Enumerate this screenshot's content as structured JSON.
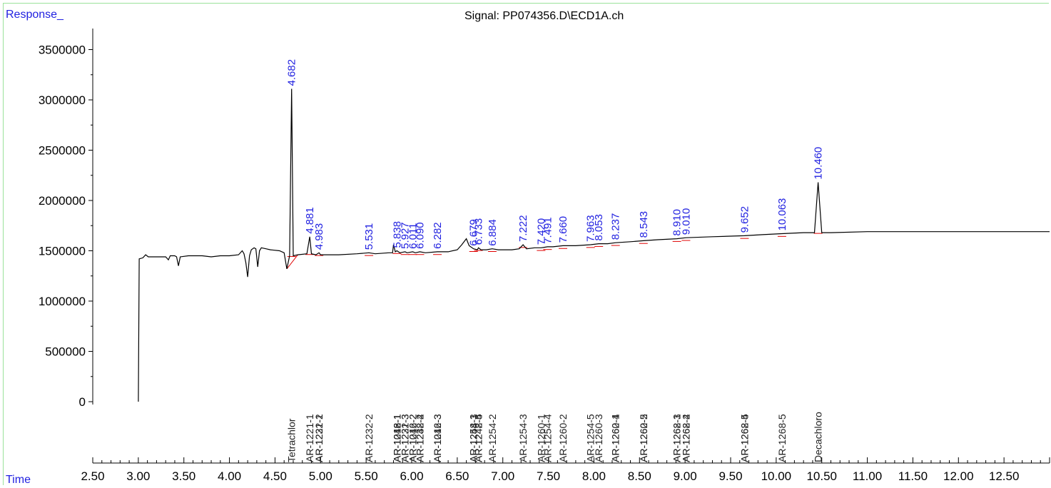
{
  "header": {
    "y_axis_label": "Response_",
    "x_axis_label": "Time",
    "signal_title": "Signal: PP074356.D\\ECD1A.ch"
  },
  "chart_data": {
    "type": "line",
    "title": "Signal: PP074356.D\\ECD1A.ch",
    "xlabel": "Time",
    "ylabel": "Response_",
    "xlim": [
      2.5,
      13.0
    ],
    "ylim": [
      -1000000,
      3700000
    ],
    "x_ticks": [
      "2.50",
      "3.00",
      "3.50",
      "4.00",
      "4.50",
      "5.00",
      "5.50",
      "6.00",
      "6.50",
      "7.00",
      "7.50",
      "8.00",
      "8.50",
      "9.00",
      "9.50",
      "10.00",
      "10.50",
      "11.00",
      "11.50",
      "12.00",
      "12.50"
    ],
    "y_ticks": [
      "0",
      "500000",
      "1000000",
      "1500000",
      "2000000",
      "2500000",
      "3000000",
      "3500000"
    ],
    "grid": false,
    "trace_color": "#000000",
    "baseline_color": "#e00000",
    "peak_label_color": "#1f1fe0",
    "trace": [
      [
        3.0,
        0
      ],
      [
        3.01,
        1420000
      ],
      [
        3.05,
        1430000
      ],
      [
        3.08,
        1460000
      ],
      [
        3.11,
        1440000
      ],
      [
        3.2,
        1440000
      ],
      [
        3.3,
        1440000
      ],
      [
        3.33,
        1410000
      ],
      [
        3.35,
        1450000
      ],
      [
        3.4,
        1450000
      ],
      [
        3.42,
        1440000
      ],
      [
        3.44,
        1350000
      ],
      [
        3.46,
        1440000
      ],
      [
        3.55,
        1450000
      ],
      [
        3.7,
        1450000
      ],
      [
        3.8,
        1440000
      ],
      [
        3.9,
        1450000
      ],
      [
        4.0,
        1450000
      ],
      [
        4.1,
        1460000
      ],
      [
        4.14,
        1500000
      ],
      [
        4.16,
        1470000
      ],
      [
        4.18,
        1380000
      ],
      [
        4.2,
        1240000
      ],
      [
        4.22,
        1450000
      ],
      [
        4.24,
        1510000
      ],
      [
        4.27,
        1530000
      ],
      [
        4.29,
        1520000
      ],
      [
        4.31,
        1340000
      ],
      [
        4.33,
        1500000
      ],
      [
        4.35,
        1530000
      ],
      [
        4.4,
        1520000
      ],
      [
        4.45,
        1510000
      ],
      [
        4.55,
        1500000
      ],
      [
        4.6,
        1480000
      ],
      [
        4.63,
        1320000
      ],
      [
        4.66,
        1450000
      ],
      [
        4.682,
        3110000
      ],
      [
        4.7,
        1450000
      ],
      [
        4.75,
        1460000
      ],
      [
        4.85,
        1470000
      ],
      [
        4.881,
        1640000
      ],
      [
        4.9,
        1470000
      ],
      [
        4.95,
        1460000
      ],
      [
        4.983,
        1480000
      ],
      [
        5.0,
        1460000
      ],
      [
        5.2,
        1460000
      ],
      [
        5.4,
        1470000
      ],
      [
        5.531,
        1480000
      ],
      [
        5.6,
        1470000
      ],
      [
        5.75,
        1480000
      ],
      [
        5.79,
        1480000
      ],
      [
        5.8,
        1560000
      ],
      [
        5.82,
        1490000
      ],
      [
        5.838,
        1500000
      ],
      [
        5.87,
        1480000
      ],
      [
        5.927,
        1490000
      ],
      [
        5.95,
        1480000
      ],
      [
        6.011,
        1490000
      ],
      [
        6.04,
        1480000
      ],
      [
        6.09,
        1490000
      ],
      [
        6.15,
        1480000
      ],
      [
        6.282,
        1490000
      ],
      [
        6.4,
        1490000
      ],
      [
        6.5,
        1510000
      ],
      [
        6.55,
        1560000
      ],
      [
        6.6,
        1620000
      ],
      [
        6.63,
        1550000
      ],
      [
        6.679,
        1520000
      ],
      [
        6.72,
        1510000
      ],
      [
        6.733,
        1530000
      ],
      [
        6.76,
        1510000
      ],
      [
        6.82,
        1510000
      ],
      [
        6.884,
        1520000
      ],
      [
        6.95,
        1510000
      ],
      [
        7.1,
        1510000
      ],
      [
        7.18,
        1520000
      ],
      [
        7.222,
        1560000
      ],
      [
        7.26,
        1520000
      ],
      [
        7.35,
        1530000
      ],
      [
        7.42,
        1530000
      ],
      [
        7.491,
        1540000
      ],
      [
        7.55,
        1540000
      ],
      [
        7.66,
        1550000
      ],
      [
        7.8,
        1550000
      ],
      [
        7.963,
        1560000
      ],
      [
        8.053,
        1570000
      ],
      [
        8.15,
        1570000
      ],
      [
        8.237,
        1580000
      ],
      [
        8.4,
        1590000
      ],
      [
        8.543,
        1600000
      ],
      [
        8.7,
        1610000
      ],
      [
        8.91,
        1620000
      ],
      [
        9.01,
        1630000
      ],
      [
        9.3,
        1640000
      ],
      [
        9.652,
        1650000
      ],
      [
        9.85,
        1660000
      ],
      [
        10.063,
        1670000
      ],
      [
        10.3,
        1680000
      ],
      [
        10.42,
        1680000
      ],
      [
        10.46,
        2180000
      ],
      [
        10.5,
        1680000
      ],
      [
        10.6,
        1680000
      ],
      [
        11.0,
        1690000
      ],
      [
        11.5,
        1690000
      ],
      [
        12.0,
        1690000
      ],
      [
        12.5,
        1690000
      ],
      [
        13.0,
        1690000
      ]
    ],
    "peaks": [
      {
        "rt": "4.682",
        "x": 4.682,
        "y": 3110000
      },
      {
        "rt": "4.881",
        "x": 4.881,
        "y": 1640000
      },
      {
        "rt": "4.983",
        "x": 4.983,
        "y": 1480000
      },
      {
        "rt": "5.531",
        "x": 5.531,
        "y": 1480000
      },
      {
        "rt": "5.838",
        "x": 5.838,
        "y": 1500000
      },
      {
        "rt": "5.927",
        "x": 5.927,
        "y": 1490000
      },
      {
        "rt": "6.011",
        "x": 6.011,
        "y": 1490000
      },
      {
        "rt": "6.090",
        "x": 6.09,
        "y": 1490000
      },
      {
        "rt": "6.282",
        "x": 6.282,
        "y": 1490000
      },
      {
        "rt": "6.679",
        "x": 6.679,
        "y": 1520000
      },
      {
        "rt": "6.733",
        "x": 6.733,
        "y": 1530000
      },
      {
        "rt": "6.884",
        "x": 6.884,
        "y": 1520000
      },
      {
        "rt": "7.222",
        "x": 7.222,
        "y": 1560000
      },
      {
        "rt": "7.420",
        "x": 7.42,
        "y": 1530000
      },
      {
        "rt": "7.491",
        "x": 7.491,
        "y": 1540000
      },
      {
        "rt": "7.660",
        "x": 7.66,
        "y": 1550000
      },
      {
        "rt": "7.963",
        "x": 7.963,
        "y": 1560000
      },
      {
        "rt": "8.053",
        "x": 8.053,
        "y": 1570000
      },
      {
        "rt": "8.237",
        "x": 8.237,
        "y": 1580000
      },
      {
        "rt": "8.543",
        "x": 8.543,
        "y": 1600000
      },
      {
        "rt": "8.910",
        "x": 8.91,
        "y": 1620000
      },
      {
        "rt": "9.010",
        "x": 9.01,
        "y": 1630000
      },
      {
        "rt": "9.652",
        "x": 9.652,
        "y": 1650000
      },
      {
        "rt": "10.063",
        "x": 10.063,
        "y": 1670000
      },
      {
        "rt": "10.460",
        "x": 10.46,
        "y": 2180000
      }
    ],
    "compound_labels": [
      {
        "name": "Tetrachlor",
        "x": 4.682
      },
      {
        "name": "AR-1221-1",
        "x": 4.881
      },
      {
        "name": "AR-1221-2",
        "x": 4.983
      },
      {
        "name": "AR-1232-1",
        "x": 4.983
      },
      {
        "name": "AR-1232-2",
        "x": 5.531
      },
      {
        "name": "AR-1016-1",
        "x": 5.838
      },
      {
        "name": "AR-1242-1",
        "x": 5.838
      },
      {
        "name": "AR-1248-1",
        "x": 5.838
      },
      {
        "name": "AR-1221-3",
        "x": 5.927
      },
      {
        "name": "AR-1232-3",
        "x": 5.927
      },
      {
        "name": "AR-1016-2",
        "x": 6.011
      },
      {
        "name": "AR-1242-2",
        "x": 6.011
      },
      {
        "name": "AR-1232-4",
        "x": 6.09
      },
      {
        "name": "AR-1248-2",
        "x": 6.09
      },
      {
        "name": "AR-1016-3",
        "x": 6.282
      },
      {
        "name": "AR-1242-3",
        "x": 6.282
      },
      {
        "name": "AR-1248-3",
        "x": 6.679
      },
      {
        "name": "AR-1254-1",
        "x": 6.679
      },
      {
        "name": "AR-1248-4",
        "x": 6.733
      },
      {
        "name": "AR-1242-5",
        "x": 6.733
      },
      {
        "name": "AR-1254-2",
        "x": 6.884
      },
      {
        "name": "AR-1254-3",
        "x": 7.222
      },
      {
        "name": "AR-1260-1",
        "x": 7.42
      },
      {
        "name": "AR-1254-4",
        "x": 7.491
      },
      {
        "name": "AR-1260-2",
        "x": 7.66
      },
      {
        "name": "AR-1254-5",
        "x": 7.963
      },
      {
        "name": "AR-1260-3",
        "x": 8.053
      },
      {
        "name": "AR-1260-4",
        "x": 8.237
      },
      {
        "name": "AR-1262-1",
        "x": 8.237
      },
      {
        "name": "AR-1260-5",
        "x": 8.543
      },
      {
        "name": "AR-1262-2",
        "x": 8.543
      },
      {
        "name": "AR-1268-1",
        "x": 8.91
      },
      {
        "name": "AR-1262-3",
        "x": 8.91
      },
      {
        "name": "AR-1268-2",
        "x": 9.01
      },
      {
        "name": "AR-1262-4",
        "x": 9.01
      },
      {
        "name": "AR-1268-4",
        "x": 9.652
      },
      {
        "name": "AR-1262-5",
        "x": 9.652
      },
      {
        "name": "AR-1268-5",
        "x": 10.063
      },
      {
        "name": "Decachloro",
        "x": 10.46
      }
    ]
  }
}
